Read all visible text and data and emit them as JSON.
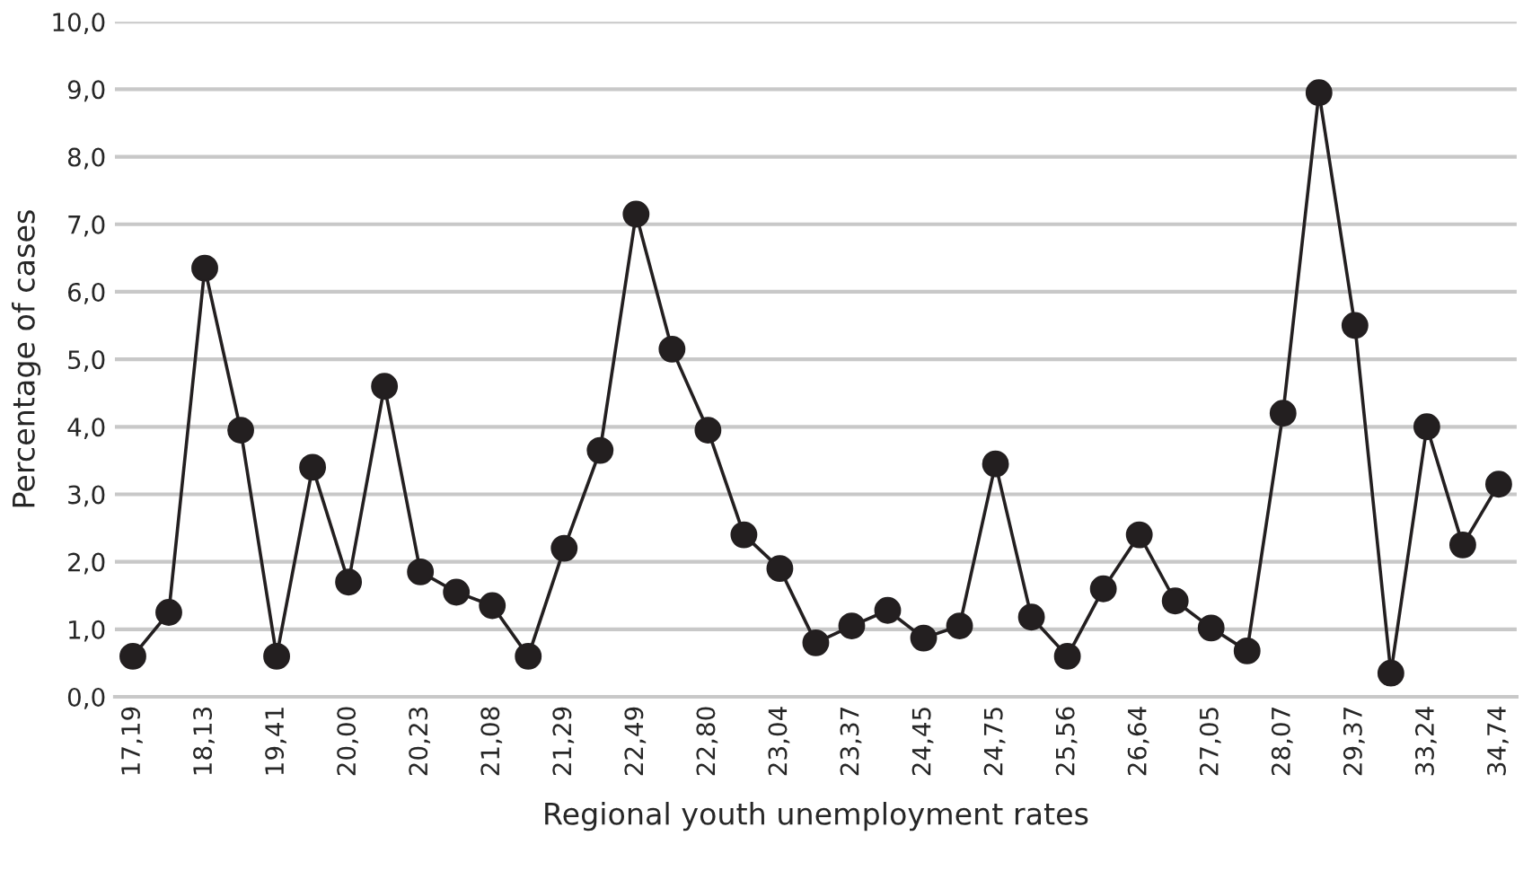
{
  "chart_data": {
    "type": "line",
    "xlabel": "Regional youth unemployment rates",
    "ylabel": "Percentage of cases",
    "categories": [
      "17,19",
      null,
      "18,13",
      null,
      "19,41",
      null,
      "20,00",
      null,
      "20,23",
      null,
      "21,08",
      null,
      "21,29",
      null,
      "22,49",
      null,
      "22,80",
      null,
      "23,04",
      null,
      "23,37",
      null,
      "24,45",
      null,
      "24,75",
      null,
      "25,56",
      null,
      "26,64",
      null,
      "27,05",
      null,
      "28,07",
      null,
      "29,37",
      null,
      "33,24",
      null,
      "34,74"
    ],
    "series": [
      {
        "color": "#231f20",
        "values": [
          0.6,
          1.25,
          6.35,
          3.95,
          0.6,
          3.4,
          1.7,
          4.6,
          1.85,
          1.55,
          1.35,
          0.6,
          2.2,
          3.65,
          7.15,
          5.15,
          3.95,
          2.4,
          1.9,
          0.8,
          1.05,
          1.28,
          0.87,
          1.05,
          3.45,
          1.18,
          0.6,
          1.6,
          2.4,
          1.42,
          1.02,
          0.68,
          4.2,
          8.95,
          5.5,
          0.35,
          4.0,
          2.25,
          3.15
        ]
      }
    ],
    "ylim": [
      0,
      10
    ],
    "yticks": [
      {
        "value": 0,
        "label": "0,0"
      },
      {
        "value": 1,
        "label": "1,0"
      },
      {
        "value": 2,
        "label": "2,0"
      },
      {
        "value": 3,
        "label": "3,0"
      },
      {
        "value": 4,
        "label": "4,0"
      },
      {
        "value": 5,
        "label": "5,0"
      },
      {
        "value": 6,
        "label": "6,0"
      },
      {
        "value": 7,
        "label": "7,0"
      },
      {
        "value": 8,
        "label": "8,0"
      },
      {
        "value": 9,
        "label": "9,0"
      },
      {
        "value": 10,
        "label": "10,0"
      }
    ],
    "grid": "y",
    "marker": "circle",
    "line_style": "solid",
    "legend": false
  }
}
